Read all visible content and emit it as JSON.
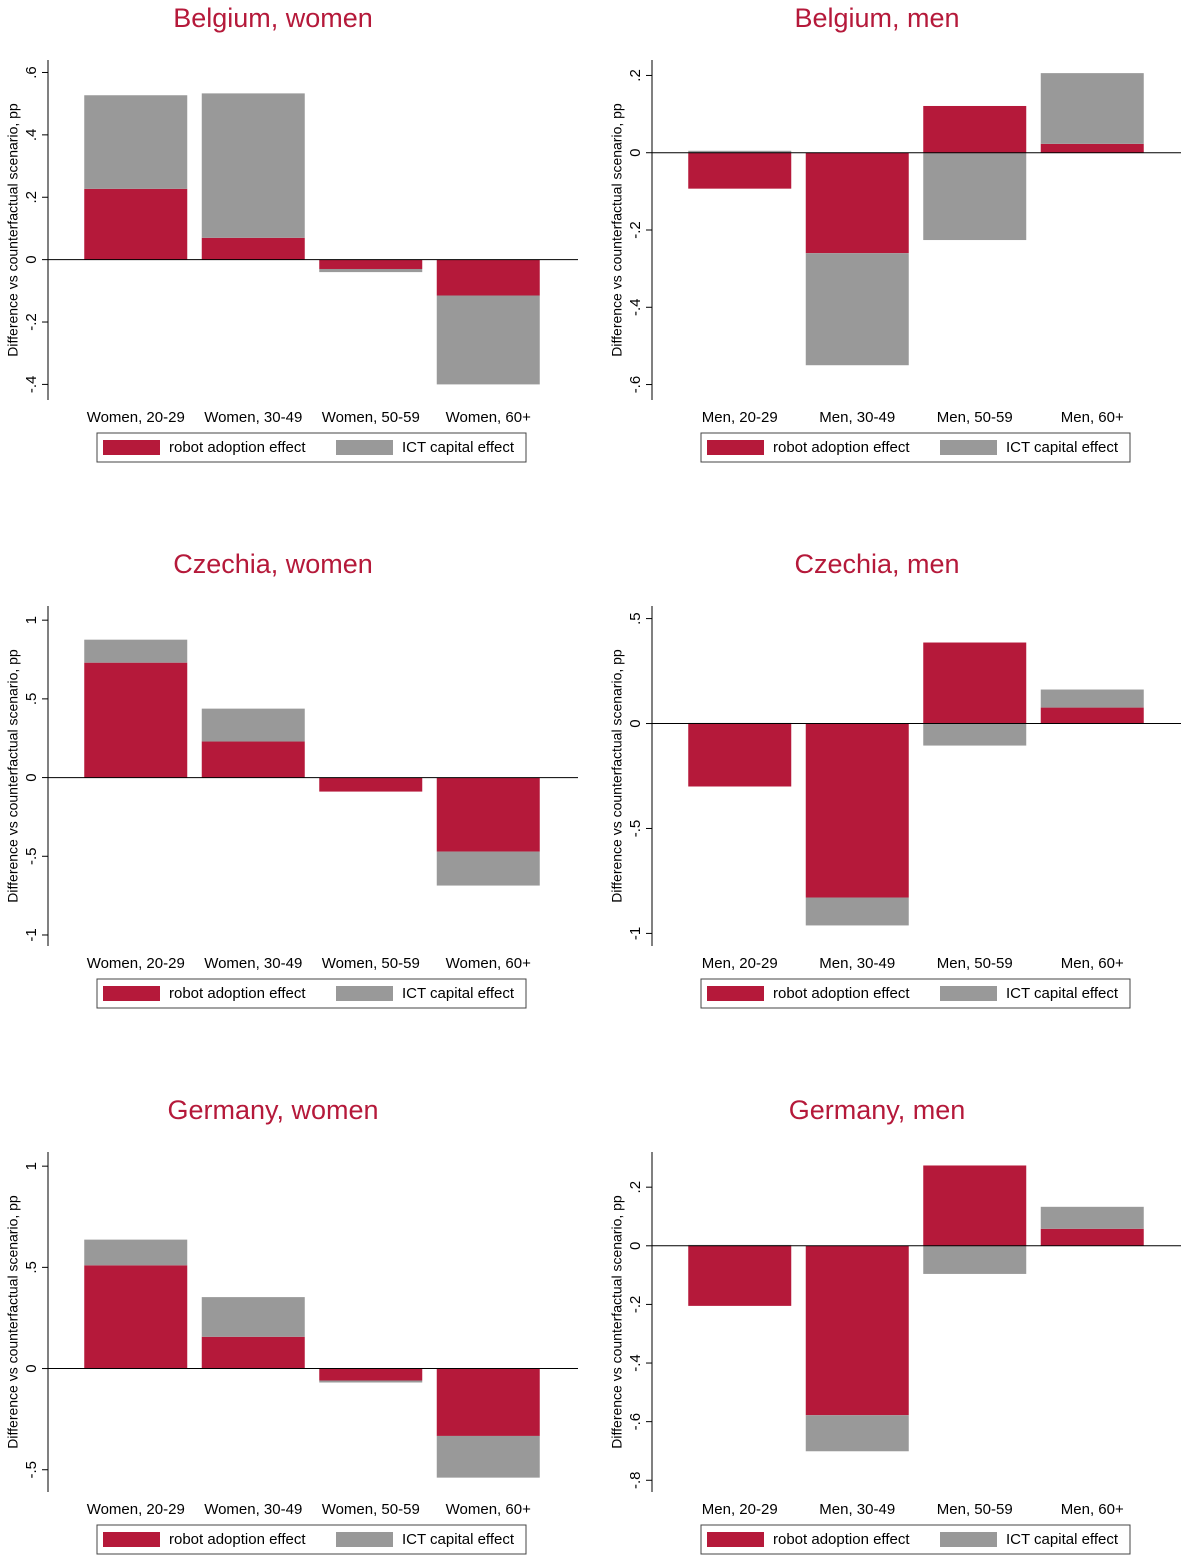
{
  "chart_data": [
    {
      "type": "bar",
      "stacked": true,
      "legend": "bottom",
      "title": "Belgium, women",
      "y_label": "Difference vs counterfactual scenario, pp",
      "categories": [
        "Women, 20-29",
        "Women, 30-49",
        "Women, 50-59",
        "Women, 60+"
      ],
      "series": [
        {
          "name": "robot adoption effect",
          "color": "#b5193a",
          "values": [
            0.227,
            0.07,
            -0.03,
            -0.115
          ]
        },
        {
          "name": "ICT capital effect",
          "color": "#999999",
          "values": [
            0.3,
            0.463,
            -0.01,
            -0.285
          ]
        }
      ],
      "ylim": [
        -0.45,
        0.64
      ],
      "yticks": [
        {
          "value": -0.4,
          "label": "-.4"
        },
        {
          "value": -0.2,
          "label": "-.2"
        },
        0,
        {
          "value": 0.2,
          "label": ".2"
        },
        {
          "value": 0.4,
          "label": ".4"
        },
        {
          "value": 0.6,
          "label": ".6"
        }
      ]
    },
    {
      "type": "bar",
      "stacked": true,
      "legend": "bottom",
      "title": "Belgium, men",
      "y_label": "Difference vs counterfactual scenario, pp",
      "categories": [
        "Men, 20-29",
        "Men, 30-49",
        "Men, 50-59",
        "Men, 60+"
      ],
      "series": [
        {
          "name": "robot adoption effect",
          "color": "#b5193a",
          "values": [
            -0.093,
            -0.26,
            0.121,
            0.023
          ]
        },
        {
          "name": "ICT capital effect",
          "color": "#999999",
          "values": [
            0.005,
            -0.29,
            -0.226,
            0.183
          ]
        }
      ],
      "ylim": [
        -0.64,
        0.24
      ],
      "yticks": [
        {
          "value": -0.6,
          "label": "-.6"
        },
        {
          "value": -0.4,
          "label": "-.4"
        },
        {
          "value": -0.2,
          "label": "-.2"
        },
        0,
        {
          "value": 0.2,
          "label": ".2"
        }
      ]
    },
    {
      "type": "bar",
      "stacked": true,
      "legend": "bottom",
      "title": "Czechia, women",
      "y_label": "Difference vs counterfactual scenario, pp",
      "categories": [
        "Women, 20-29",
        "Women, 30-49",
        "Women, 50-59",
        "Women, 60+"
      ],
      "series": [
        {
          "name": "robot adoption effect",
          "color": "#b5193a",
          "values": [
            0.73,
            0.229,
            -0.089,
            -0.47
          ]
        },
        {
          "name": "ICT capital effect",
          "color": "#999999",
          "values": [
            0.146,
            0.209,
            0,
            -0.216
          ]
        }
      ],
      "ylim": [
        -1.07,
        1.09
      ],
      "yticks": [
        -1,
        {
          "value": -0.5,
          "label": "-.5"
        },
        0,
        {
          "value": 0.5,
          "label": ".5"
        },
        1
      ]
    },
    {
      "type": "bar",
      "stacked": true,
      "legend": "bottom",
      "title": "Czechia, men",
      "y_label": "Difference vs counterfactual scenario, pp",
      "categories": [
        "Men, 20-29",
        "Men, 30-49",
        "Men, 50-59",
        "Men, 60+"
      ],
      "series": [
        {
          "name": "robot adoption effect",
          "color": "#b5193a",
          "values": [
            -0.3,
            -0.829,
            0.386,
            0.076
          ]
        },
        {
          "name": "ICT capital effect",
          "color": "#999999",
          "values": [
            0.003,
            -0.133,
            -0.105,
            0.086
          ]
        }
      ],
      "ylim": [
        -1.06,
        0.56
      ],
      "yticks": [
        -1,
        {
          "value": -0.5,
          "label": "-.5"
        },
        0,
        {
          "value": 0.5,
          "label": ".5"
        }
      ]
    },
    {
      "type": "bar",
      "stacked": true,
      "legend": "bottom",
      "title": "Germany, women",
      "y_label": "Difference vs counterfactual scenario, pp",
      "categories": [
        "Women, 20-29",
        "Women, 30-49",
        "Women, 50-59",
        "Women, 60+"
      ],
      "series": [
        {
          "name": "robot adoption effect",
          "color": "#b5193a",
          "values": [
            0.51,
            0.157,
            -0.059,
            -0.333
          ]
        },
        {
          "name": "ICT capital effect",
          "color": "#999999",
          "values": [
            0.127,
            0.196,
            -0.01,
            -0.206
          ]
        }
      ],
      "ylim": [
        -0.61,
        1.07
      ],
      "yticks": [
        {
          "value": -0.5,
          "label": "-.5"
        },
        0,
        {
          "value": 0.5,
          "label": ".5"
        },
        1
      ]
    },
    {
      "type": "bar",
      "stacked": true,
      "legend": "bottom",
      "title": "Germany, men",
      "y_label": "Difference vs counterfactual scenario, pp",
      "categories": [
        "Men, 20-29",
        "Men, 30-49",
        "Men, 50-59",
        "Men, 60+"
      ],
      "series": [
        {
          "name": "robot adoption effect",
          "color": "#b5193a",
          "values": [
            -0.205,
            -0.578,
            0.274,
            0.058
          ]
        },
        {
          "name": "ICT capital effect",
          "color": "#999999",
          "values": [
            0.003,
            -0.123,
            -0.096,
            0.075
          ]
        }
      ],
      "ylim": [
        -0.84,
        0.32
      ],
      "yticks": [
        {
          "value": -0.8,
          "label": "-.8"
        },
        {
          "value": -0.6,
          "label": "-.6"
        },
        {
          "value": -0.4,
          "label": "-.4"
        },
        {
          "value": -0.2,
          "label": "-.2"
        },
        0,
        {
          "value": 0.2,
          "label": ".2"
        }
      ]
    }
  ]
}
